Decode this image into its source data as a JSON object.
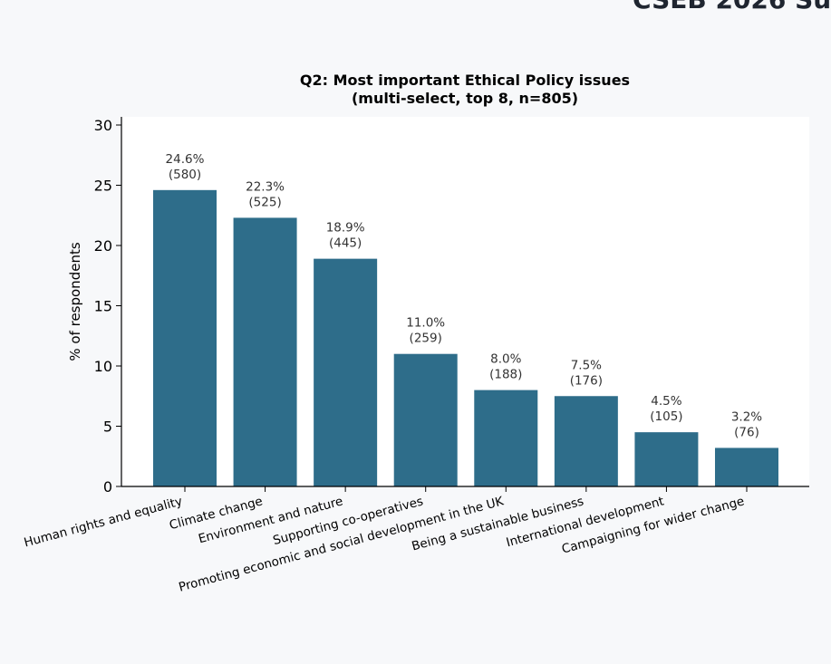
{
  "page_header": "CSEB 2026 Su",
  "chart_data": {
    "type": "bar",
    "title": "Q2: Most important Ethical Policy issues",
    "subtitle": "(multi-select, top 8, n=805)",
    "xlabel": "",
    "ylabel": "% of respondents",
    "ylim": [
      0,
      30
    ],
    "yticks": [
      0,
      5,
      10,
      15,
      20,
      25,
      30
    ],
    "grid": false,
    "bar_color": "#2e6d8a",
    "categories": [
      "Human rights and equality",
      "Climate change",
      "Environment and nature",
      "Supporting co-operatives",
      "Promoting economic and social development in the UK",
      "Being a sustainable business",
      "International development",
      "Campaigning for wider change"
    ],
    "values": [
      24.6,
      22.3,
      18.9,
      11.0,
      8.0,
      7.5,
      4.5,
      3.2
    ],
    "counts": [
      580,
      525,
      445,
      259,
      188,
      176,
      105,
      76
    ],
    "value_labels": [
      "24.6%",
      "22.3%",
      "18.9%",
      "11.0%",
      "8.0%",
      "7.5%",
      "4.5%",
      "3.2%"
    ],
    "count_labels": [
      "(580)",
      "(525)",
      "(445)",
      "(259)",
      "(188)",
      "(176)",
      "(105)",
      "(76)"
    ]
  }
}
